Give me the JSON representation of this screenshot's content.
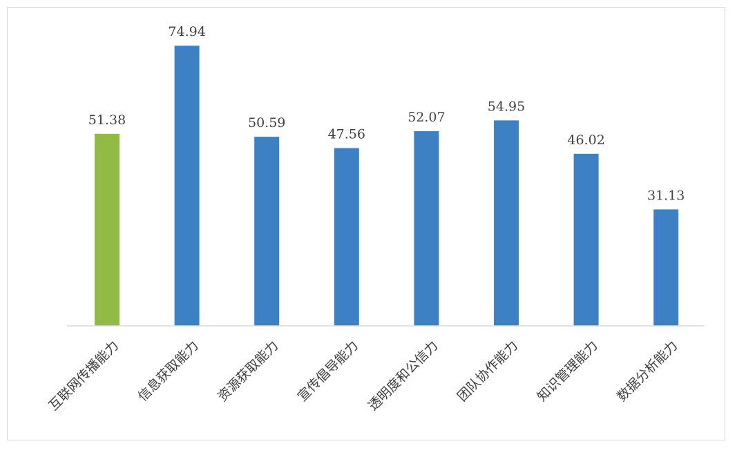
{
  "chart_data": {
    "type": "bar",
    "categories": [
      "互联网传播能力",
      "信息获取能力",
      "资源获取能力",
      "宣传倡导能力",
      "透明度和公信力",
      "团队协作能力",
      "知识管理能力",
      "数据分析能力"
    ],
    "values": [
      51.38,
      74.94,
      50.59,
      47.56,
      52.07,
      54.95,
      46.02,
      31.13
    ],
    "data_labels": [
      "51.38",
      "74.94",
      "50.59",
      "47.56",
      "52.07",
      "54.95",
      "46.02",
      "31.13"
    ],
    "colors": [
      "#92bb45",
      "#3d80c4",
      "#3d80c4",
      "#3d80c4",
      "#3d80c4",
      "#3d80c4",
      "#3d80c4",
      "#3d80c4"
    ],
    "axis_color": "#d9d9d9",
    "ylim": [
      0,
      80
    ],
    "grid": false,
    "legend": "none"
  }
}
